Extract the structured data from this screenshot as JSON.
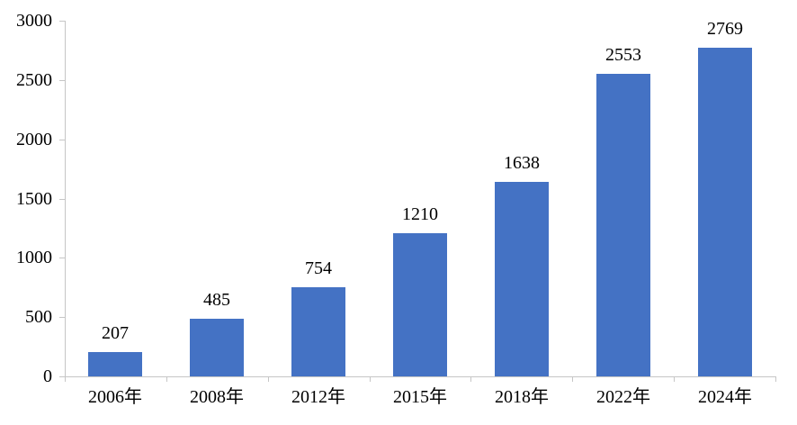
{
  "chart_data": {
    "type": "bar",
    "title": "",
    "xlabel": "",
    "ylabel": "",
    "categories": [
      "2006年",
      "2008年",
      "2012年",
      "2015年",
      "2018年",
      "2022年",
      "2024年"
    ],
    "values": [
      207,
      485,
      754,
      1210,
      1638,
      2553,
      2769
    ],
    "data_labels": [
      "207",
      "485",
      "754",
      "1210",
      "1638",
      "2553",
      "2769"
    ],
    "ylim": [
      0,
      3000
    ],
    "yticks": [
      0,
      500,
      1000,
      1500,
      2000,
      2500,
      3000
    ],
    "grid": false,
    "legend": false,
    "bar_color": "#4472C4",
    "axis_color": "#C6C6C6",
    "text_color": "#000000"
  }
}
